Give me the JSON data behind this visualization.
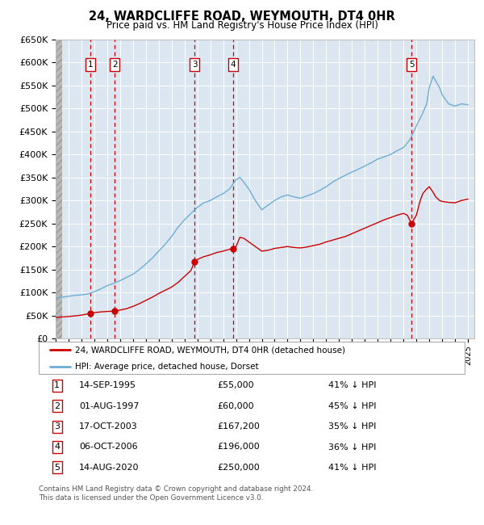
{
  "title": "24, WARDCLIFFE ROAD, WEYMOUTH, DT4 0HR",
  "subtitle": "Price paid vs. HM Land Registry's House Price Index (HPI)",
  "ylim": [
    0,
    650000
  ],
  "yticks": [
    0,
    50000,
    100000,
    150000,
    200000,
    250000,
    300000,
    350000,
    400000,
    450000,
    500000,
    550000,
    600000,
    650000
  ],
  "xlim_start": 1993.0,
  "xlim_end": 2025.5,
  "sale_dates_x": [
    1995.71,
    1997.58,
    2003.79,
    2006.76,
    2020.62
  ],
  "sale_prices_y": [
    55000,
    60000,
    167200,
    196000,
    250000
  ],
  "sale_labels": [
    "1",
    "2",
    "3",
    "4",
    "5"
  ],
  "sale_color": "#cc0000",
  "hpi_color": "#6baed6",
  "legend_sale_label": "24, WARDCLIFFE ROAD, WEYMOUTH, DT4 0HR (detached house)",
  "legend_hpi_label": "HPI: Average price, detached house, Dorset",
  "table_data": [
    [
      "1",
      "14-SEP-1995",
      "£55,000",
      "41% ↓ HPI"
    ],
    [
      "2",
      "01-AUG-1997",
      "£60,000",
      "45% ↓ HPI"
    ],
    [
      "3",
      "17-OCT-2003",
      "£167,200",
      "35% ↓ HPI"
    ],
    [
      "4",
      "06-OCT-2006",
      "£196,000",
      "36% ↓ HPI"
    ],
    [
      "5",
      "14-AUG-2020",
      "£250,000",
      "41% ↓ HPI"
    ]
  ],
  "footer": "Contains HM Land Registry data © Crown copyright and database right 2024.\nThis data is licensed under the Open Government Licence v3.0.",
  "plot_bg_color": "#dce6f1",
  "grid_color": "#ffffff"
}
